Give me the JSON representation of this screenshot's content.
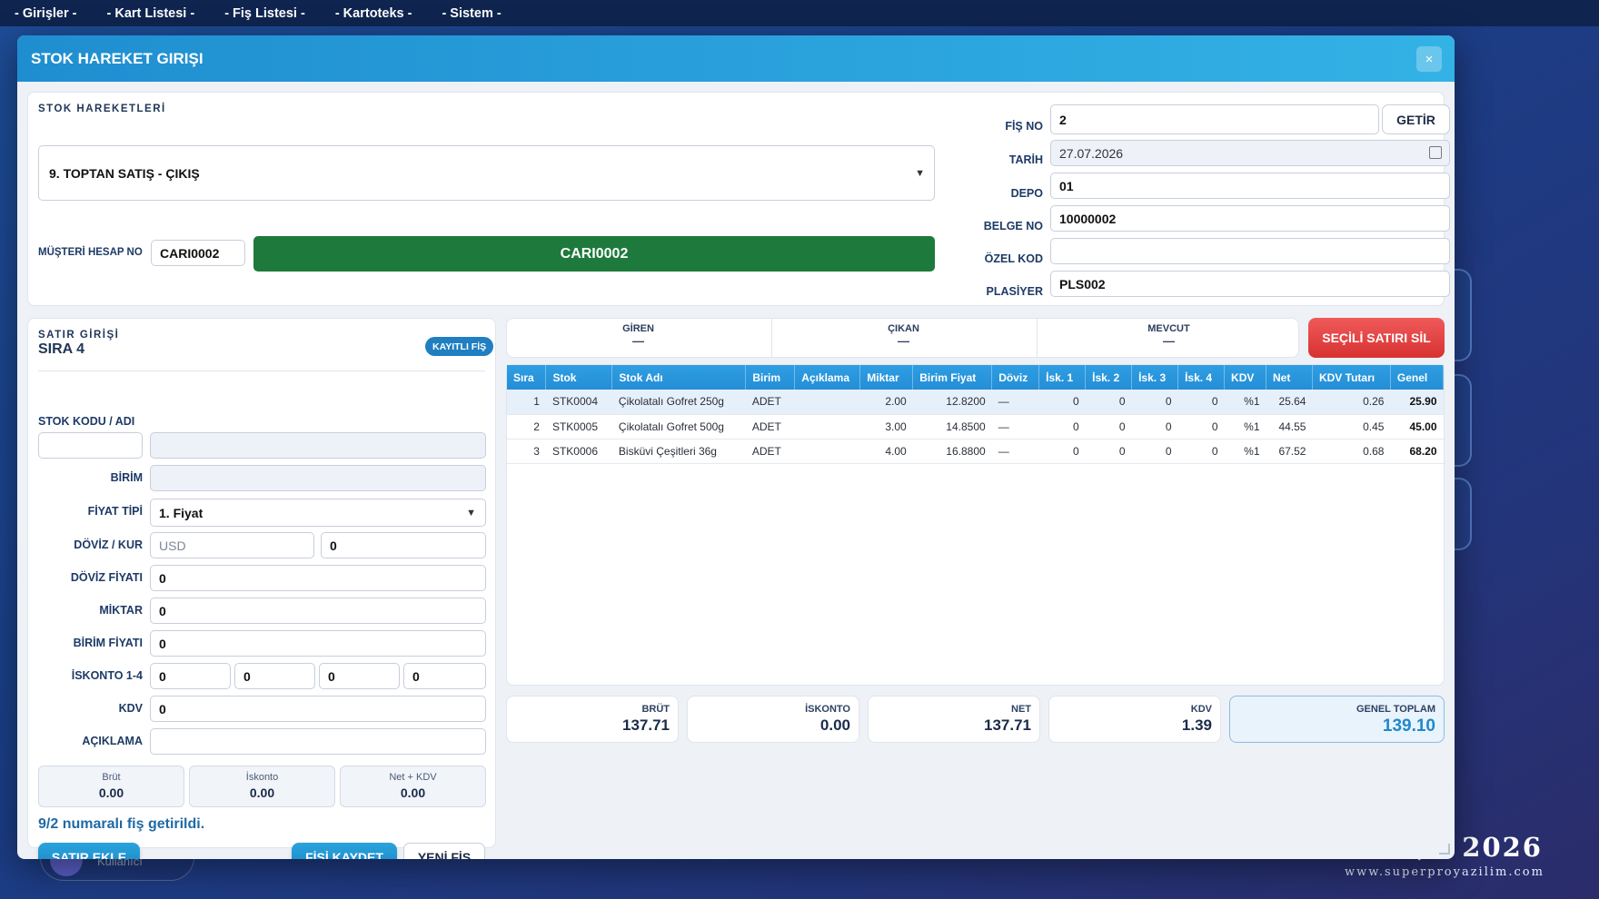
{
  "menubar": [
    "- Girişler -",
    "- Kart Listesi -",
    "- Fiş Listesi -",
    "- Kartoteks -",
    "- Sistem -"
  ],
  "background": {
    "user_label": "Kullanıcı",
    "brand_year": "; : 2026",
    "brand_web": "www.superproyazilim.com"
  },
  "modal": {
    "title": "STOK HAREKET GIRIŞI",
    "close": "×"
  },
  "header_panel": {
    "section_title": "STOK HAREKETLERİ",
    "movement_type": "9. TOPTAN SATIŞ - ÇIKIŞ",
    "customer_label": "MÜŞTERİ HESAP NO",
    "customer_value": "CARI0002",
    "customer_banner": "CARI0002",
    "fields": {
      "fis_no_label": "FİŞ NO",
      "fis_no": "2",
      "getir": "GETİR",
      "tarih_label": "TARİH",
      "tarih": "27.07.2026",
      "depo_label": "DEPO",
      "depo": "01",
      "belge_no_label": "BELGE NO",
      "belge_no": "10000002",
      "ozel_kod_label": "ÖZEL KOD",
      "ozel_kod": "",
      "plasiyer_label": "PLASİYER",
      "plasiyer": "PLS002"
    }
  },
  "line_entry": {
    "section_title": "SATIR GİRİŞİ",
    "row_label": "SIRA 4",
    "badge": "KAYITLI FİŞ",
    "stock_code_label": "STOK KODU / ADI",
    "birim_label": "BİRİM",
    "price_type_label": "FİYAT TİPİ",
    "price_type": "1. Fiyat",
    "currency_label": "DÖVİZ / KUR",
    "currency_placeholder": "USD",
    "rate": "0",
    "fx_price_label": "DÖVİZ FİYATI",
    "fx_price": "0",
    "qty_label": "MİKTAR",
    "qty": "0",
    "unit_price_label": "BİRİM FİYATI",
    "unit_price": "0",
    "discount_label": "İSKONTO 1-4",
    "discounts": [
      "0",
      "0",
      "0",
      "0"
    ],
    "kdv_label": "KDV",
    "kdv": "0",
    "desc_label": "AÇIKLAMA",
    "desc": "",
    "totals": {
      "brut_label": "Brüt",
      "brut": "0.00",
      "iskonto_label": "İskonto",
      "iskonto": "0.00",
      "net_kdv_label": "Net + KDV",
      "net_kdv": "0.00"
    },
    "status_message": "9/2 numaralı fiş getirildi.",
    "add_row": "SATIR EKLE",
    "save": "FİŞİ KAYDET",
    "new": "YENİ FİŞ"
  },
  "stock_stats": {
    "giren_label": "GİREN",
    "giren": "—",
    "cikan_label": "ÇIKAN",
    "cikan": "—",
    "mevcut_label": "MEVCUT",
    "mevcut": "—",
    "delete_button": "SEÇİLİ SATIRI SİL"
  },
  "grid": {
    "columns": [
      "Sıra",
      "Stok",
      "Stok Adı",
      "Birim",
      "Açıklama",
      "Miktar",
      "Birim Fiyat",
      "Döviz",
      "İsk. 1",
      "İsk. 2",
      "İsk. 3",
      "İsk. 4",
      "KDV",
      "Net",
      "KDV Tutarı",
      "Genel"
    ],
    "rows": [
      [
        "1",
        "STK0004",
        "Çikolatalı Gofret 250g",
        "ADET",
        "",
        "2.00",
        "12.8200",
        "—",
        "0",
        "0",
        "0",
        "0",
        "%1",
        "25.64",
        "0.26",
        "25.90"
      ],
      [
        "2",
        "STK0005",
        "Çikolatalı Gofret 500g",
        "ADET",
        "",
        "3.00",
        "14.8500",
        "—",
        "0",
        "0",
        "0",
        "0",
        "%1",
        "44.55",
        "0.45",
        "45.00"
      ],
      [
        "3",
        "STK0006",
        "Bisküvi Çeşitleri 36g",
        "ADET",
        "",
        "4.00",
        "16.8800",
        "—",
        "0",
        "0",
        "0",
        "0",
        "%1",
        "67.52",
        "0.68",
        "68.20"
      ]
    ],
    "selected_row": 0
  },
  "summary": {
    "brut_label": "BRÜT",
    "brut": "137.71",
    "iskonto_label": "İSKONTO",
    "iskonto": "0.00",
    "net_label": "NET",
    "net": "137.71",
    "kdv_label": "KDV",
    "kdv": "1.39",
    "genel_label": "GENEL TOPLAM",
    "genel": "139.10"
  }
}
